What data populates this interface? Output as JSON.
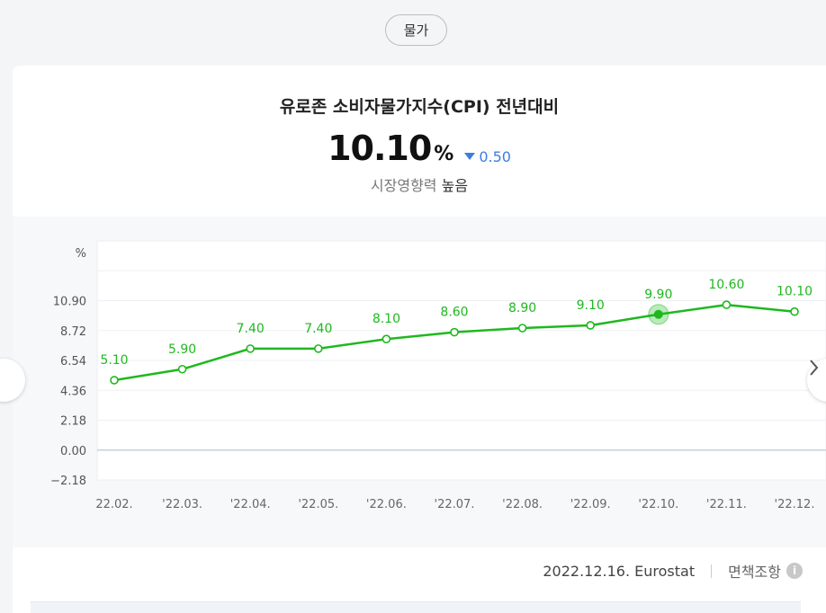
{
  "category_chip": "물가",
  "header": {
    "title": "유로존 소비자물가지수(CPI) 전년대비",
    "value": "10.10",
    "unit": "%",
    "change": "0.50",
    "change_direction": "down",
    "impact_label": "시장영향력",
    "impact_value": "높음"
  },
  "footer": {
    "source": "2022.12.16. Eurostat",
    "disclaimer": "면책조항"
  },
  "colors": {
    "line": "#1fb81f",
    "change": "#3d7de0"
  },
  "chart_data": {
    "type": "line",
    "ylabel": "%",
    "categories": [
      "22.02.",
      "'22.03.",
      "'22.04.",
      "'22.05.",
      "'22.06.",
      "'22.07.",
      "'22.08.",
      "'22.09.",
      "'22.10.",
      "'22.11.",
      "'22.12."
    ],
    "values": [
      5.1,
      5.9,
      7.4,
      7.4,
      8.1,
      8.6,
      8.9,
      9.1,
      9.9,
      10.6,
      10.1
    ],
    "value_labels": [
      "5.10",
      "5.90",
      "7.40",
      "7.40",
      "8.10",
      "8.60",
      "8.90",
      "9.10",
      "9.90",
      "10.60",
      "10.10"
    ],
    "yticks": [
      "10.90",
      "8.72",
      "6.54",
      "4.36",
      "2.18",
      "0.00",
      "−2.18"
    ],
    "ytick_values": [
      10.9,
      8.72,
      6.54,
      4.36,
      2.18,
      0.0,
      -2.18
    ],
    "ylim": [
      -2.18,
      15.26
    ],
    "highlighted_index": 8,
    "grid": true
  }
}
